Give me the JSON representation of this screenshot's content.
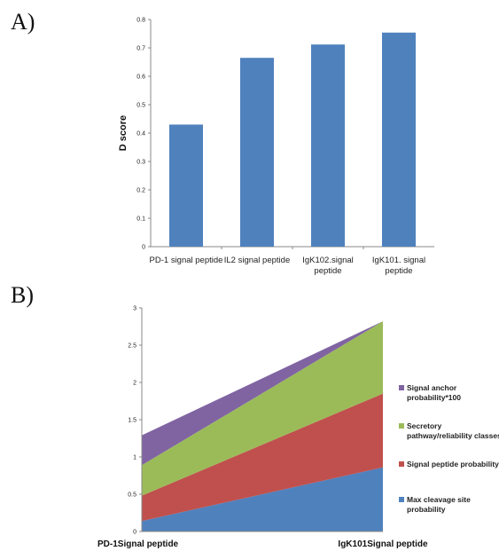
{
  "panel_labels": {
    "a": "A)",
    "b": "B)"
  },
  "chart_data": [
    {
      "type": "bar",
      "title": "",
      "ylabel": "D score",
      "ylim": [
        0,
        0.8
      ],
      "yticks": [
        "0",
        "0.1",
        "0.2",
        "0.3",
        "0.4",
        "0.5",
        "0.6",
        "0.7",
        "0.8"
      ],
      "categories": [
        [
          "PD-1 signal peptide"
        ],
        [
          "IL2 signal peptide"
        ],
        [
          "IgK102.signal",
          "peptide"
        ],
        [
          "IgK101. signal",
          "peptide"
        ]
      ],
      "values": [
        0.43,
        0.665,
        0.712,
        0.754
      ],
      "color": "#4f81bd"
    },
    {
      "type": "area",
      "stacked": true,
      "title": "",
      "ylim": [
        0,
        3
      ],
      "yticks": [
        "0",
        "0.5",
        "1",
        "1.5",
        "2",
        "2.5",
        "3"
      ],
      "categories": [
        "PD-1Signal peptide",
        "IgK101Signal peptide"
      ],
      "legend_position": "right",
      "series": [
        {
          "name": "Max cleavage site probability",
          "values": [
            0.14,
            0.86
          ],
          "color": "#4f81bd"
        },
        {
          "name": "Signal peptide probability",
          "values": [
            0.34,
            0.99
          ],
          "color": "#c0504d"
        },
        {
          "name": "Secretory pathway/reliability classes",
          "values": [
            0.41,
            0.97
          ],
          "color": "#9bbb59"
        },
        {
          "name": "Signal anchor probability*100",
          "values": [
            0.4,
            0.0
          ],
          "color": "#8064a2"
        }
      ]
    }
  ]
}
